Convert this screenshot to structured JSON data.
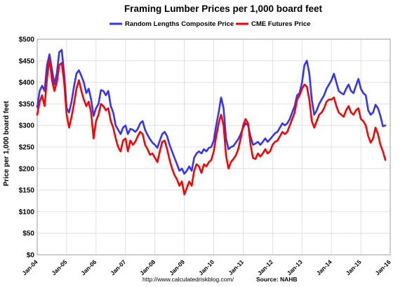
{
  "chart_data": {
    "type": "line",
    "title": "Framing Lumber Prices per 1,000 board feet",
    "ylabel": "Price per 1,000 board feet",
    "xlabel": "",
    "ylim": [
      0,
      500
    ],
    "xlim": [
      "2004-01",
      "2016-01"
    ],
    "grid": true,
    "legend_position": "top",
    "y_ticks": [
      "$0",
      "$50",
      "$100",
      "$150",
      "$200",
      "$250",
      "$300",
      "$350",
      "$400",
      "$450",
      "$500"
    ],
    "x_ticks": [
      "Jan-04",
      "Jan-05",
      "Jan-06",
      "Jan-07",
      "Jan-08",
      "Jan-09",
      "Jan-10",
      "Jan-11",
      "Jan-12",
      "Jan-13",
      "Jan-14",
      "Jan-15",
      "Jan-16"
    ],
    "series": [
      {
        "name": "Random Lengths Composite Price",
        "color": "#3333ff",
        "points": [
          [
            "2004-01",
            342
          ],
          [
            "2004-02",
            380
          ],
          [
            "2004-03",
            392
          ],
          [
            "2004-04",
            380
          ],
          [
            "2004-05",
            440
          ],
          [
            "2004-06",
            465
          ],
          [
            "2004-07",
            430
          ],
          [
            "2004-08",
            395
          ],
          [
            "2004-09",
            420
          ],
          [
            "2004-10",
            470
          ],
          [
            "2004-11",
            475
          ],
          [
            "2004-12",
            420
          ],
          [
            "2005-01",
            340
          ],
          [
            "2005-02",
            330
          ],
          [
            "2005-03",
            355
          ],
          [
            "2005-04",
            390
          ],
          [
            "2005-05",
            420
          ],
          [
            "2005-06",
            428
          ],
          [
            "2005-07",
            415
          ],
          [
            "2005-08",
            400
          ],
          [
            "2005-09",
            375
          ],
          [
            "2005-10",
            385
          ],
          [
            "2005-11",
            360
          ],
          [
            "2005-12",
            322
          ],
          [
            "2006-01",
            340
          ],
          [
            "2006-02",
            350
          ],
          [
            "2006-03",
            382
          ],
          [
            "2006-04",
            380
          ],
          [
            "2006-05",
            370
          ],
          [
            "2006-06",
            380
          ],
          [
            "2006-07",
            345
          ],
          [
            "2006-08",
            330
          ],
          [
            "2006-09",
            300
          ],
          [
            "2006-10",
            290
          ],
          [
            "2006-11",
            280
          ],
          [
            "2006-12",
            295
          ],
          [
            "2007-01",
            300
          ],
          [
            "2007-02",
            280
          ],
          [
            "2007-03",
            292
          ],
          [
            "2007-04",
            290
          ],
          [
            "2007-05",
            285
          ],
          [
            "2007-06",
            292
          ],
          [
            "2007-07",
            305
          ],
          [
            "2007-08",
            310
          ],
          [
            "2007-09",
            290
          ],
          [
            "2007-10",
            278
          ],
          [
            "2007-11",
            268
          ],
          [
            "2007-12",
            260
          ],
          [
            "2008-01",
            255
          ],
          [
            "2008-02",
            248
          ],
          [
            "2008-03",
            265
          ],
          [
            "2008-04",
            280
          ],
          [
            "2008-05",
            285
          ],
          [
            "2008-06",
            275
          ],
          [
            "2008-07",
            255
          ],
          [
            "2008-08",
            240
          ],
          [
            "2008-09",
            225
          ],
          [
            "2008-10",
            210
          ],
          [
            "2008-11",
            195
          ],
          [
            "2008-12",
            200
          ],
          [
            "2009-01",
            188
          ],
          [
            "2009-02",
            195
          ],
          [
            "2009-03",
            205
          ],
          [
            "2009-04",
            195
          ],
          [
            "2009-05",
            225
          ],
          [
            "2009-06",
            235
          ],
          [
            "2009-07",
            240
          ],
          [
            "2009-08",
            235
          ],
          [
            "2009-09",
            245
          ],
          [
            "2009-10",
            240
          ],
          [
            "2009-11",
            248
          ],
          [
            "2009-12",
            250
          ],
          [
            "2010-01",
            265
          ],
          [
            "2010-02",
            300
          ],
          [
            "2010-03",
            330
          ],
          [
            "2010-04",
            365
          ],
          [
            "2010-05",
            340
          ],
          [
            "2010-06",
            270
          ],
          [
            "2010-07",
            245
          ],
          [
            "2010-08",
            250
          ],
          [
            "2010-09",
            252
          ],
          [
            "2010-10",
            260
          ],
          [
            "2010-11",
            268
          ],
          [
            "2010-12",
            280
          ],
          [
            "2011-01",
            295
          ],
          [
            "2011-02",
            305
          ],
          [
            "2011-03",
            300
          ],
          [
            "2011-04",
            275
          ],
          [
            "2011-05",
            255
          ],
          [
            "2011-06",
            258
          ],
          [
            "2011-07",
            262
          ],
          [
            "2011-08",
            255
          ],
          [
            "2011-09",
            262
          ],
          [
            "2011-10",
            270
          ],
          [
            "2011-11",
            262
          ],
          [
            "2011-12",
            268
          ],
          [
            "2012-01",
            275
          ],
          [
            "2012-02",
            282
          ],
          [
            "2012-03",
            285
          ],
          [
            "2012-04",
            295
          ],
          [
            "2012-05",
            305
          ],
          [
            "2012-06",
            300
          ],
          [
            "2012-07",
            305
          ],
          [
            "2012-08",
            315
          ],
          [
            "2012-09",
            330
          ],
          [
            "2012-10",
            345
          ],
          [
            "2012-11",
            370
          ],
          [
            "2012-12",
            375
          ],
          [
            "2013-01",
            400
          ],
          [
            "2013-02",
            440
          ],
          [
            "2013-03",
            450
          ],
          [
            "2013-04",
            420
          ],
          [
            "2013-05",
            360
          ],
          [
            "2013-06",
            325
          ],
          [
            "2013-07",
            335
          ],
          [
            "2013-08",
            350
          ],
          [
            "2013-09",
            360
          ],
          [
            "2013-10",
            370
          ],
          [
            "2013-11",
            385
          ],
          [
            "2013-12",
            395
          ],
          [
            "2014-01",
            405
          ],
          [
            "2014-02",
            420
          ],
          [
            "2014-03",
            400
          ],
          [
            "2014-04",
            380
          ],
          [
            "2014-05",
            375
          ],
          [
            "2014-06",
            372
          ],
          [
            "2014-07",
            385
          ],
          [
            "2014-08",
            395
          ],
          [
            "2014-09",
            380
          ],
          [
            "2014-10",
            375
          ],
          [
            "2014-11",
            392
          ],
          [
            "2014-12",
            408
          ],
          [
            "2015-01",
            385
          ],
          [
            "2015-02",
            375
          ],
          [
            "2015-03",
            370
          ],
          [
            "2015-04",
            335
          ],
          [
            "2015-05",
            325
          ],
          [
            "2015-06",
            330
          ],
          [
            "2015-07",
            348
          ],
          [
            "2015-08",
            340
          ],
          [
            "2015-09",
            322
          ],
          [
            "2015-10",
            298
          ],
          [
            "2015-11",
            300
          ]
        ]
      },
      {
        "name": "CME Futures Price",
        "color": "#ff0000",
        "points": [
          [
            "2004-01",
            325
          ],
          [
            "2004-02",
            355
          ],
          [
            "2004-03",
            370
          ],
          [
            "2004-04",
            345
          ],
          [
            "2004-05",
            410
          ],
          [
            "2004-06",
            455
          ],
          [
            "2004-07",
            405
          ],
          [
            "2004-08",
            380
          ],
          [
            "2004-09",
            400
          ],
          [
            "2004-10",
            440
          ],
          [
            "2004-11",
            445
          ],
          [
            "2004-12",
            400
          ],
          [
            "2005-01",
            325
          ],
          [
            "2005-02",
            295
          ],
          [
            "2005-03",
            320
          ],
          [
            "2005-04",
            350
          ],
          [
            "2005-05",
            385
          ],
          [
            "2005-06",
            405
          ],
          [
            "2005-07",
            380
          ],
          [
            "2005-08",
            360
          ],
          [
            "2005-09",
            345
          ],
          [
            "2005-10",
            355
          ],
          [
            "2005-11",
            330
          ],
          [
            "2005-12",
            270
          ],
          [
            "2006-01",
            310
          ],
          [
            "2006-02",
            325
          ],
          [
            "2006-03",
            350
          ],
          [
            "2006-04",
            345
          ],
          [
            "2006-05",
            335
          ],
          [
            "2006-06",
            340
          ],
          [
            "2006-07",
            310
          ],
          [
            "2006-08",
            295
          ],
          [
            "2006-09",
            270
          ],
          [
            "2006-10",
            250
          ],
          [
            "2006-11",
            240
          ],
          [
            "2006-12",
            265
          ],
          [
            "2007-01",
            270
          ],
          [
            "2007-02",
            240
          ],
          [
            "2007-03",
            265
          ],
          [
            "2007-04",
            255
          ],
          [
            "2007-05",
            262
          ],
          [
            "2007-06",
            275
          ],
          [
            "2007-07",
            285
          ],
          [
            "2007-08",
            280
          ],
          [
            "2007-09",
            255
          ],
          [
            "2007-10",
            245
          ],
          [
            "2007-11",
            232
          ],
          [
            "2007-12",
            235
          ],
          [
            "2008-01",
            225
          ],
          [
            "2008-02",
            215
          ],
          [
            "2008-03",
            240
          ],
          [
            "2008-04",
            262
          ],
          [
            "2008-05",
            265
          ],
          [
            "2008-06",
            245
          ],
          [
            "2008-07",
            220
          ],
          [
            "2008-08",
            200
          ],
          [
            "2008-09",
            185
          ],
          [
            "2008-10",
            175
          ],
          [
            "2008-11",
            160
          ],
          [
            "2008-12",
            170
          ],
          [
            "2009-01",
            140
          ],
          [
            "2009-02",
            155
          ],
          [
            "2009-03",
            170
          ],
          [
            "2009-04",
            160
          ],
          [
            "2009-05",
            195
          ],
          [
            "2009-06",
            210
          ],
          [
            "2009-07",
            205
          ],
          [
            "2009-08",
            190
          ],
          [
            "2009-09",
            210
          ],
          [
            "2009-10",
            205
          ],
          [
            "2009-11",
            215
          ],
          [
            "2009-12",
            220
          ],
          [
            "2010-01",
            240
          ],
          [
            "2010-02",
            275
          ],
          [
            "2010-03",
            305
          ],
          [
            "2010-04",
            325
          ],
          [
            "2010-05",
            300
          ],
          [
            "2010-06",
            230
          ],
          [
            "2010-07",
            200
          ],
          [
            "2010-08",
            215
          ],
          [
            "2010-09",
            222
          ],
          [
            "2010-10",
            230
          ],
          [
            "2010-11",
            245
          ],
          [
            "2010-12",
            270
          ],
          [
            "2011-01",
            300
          ],
          [
            "2011-02",
            315
          ],
          [
            "2011-03",
            305
          ],
          [
            "2011-04",
            255
          ],
          [
            "2011-05",
            225
          ],
          [
            "2011-06",
            222
          ],
          [
            "2011-07",
            235
          ],
          [
            "2011-08",
            228
          ],
          [
            "2011-09",
            235
          ],
          [
            "2011-10",
            245
          ],
          [
            "2011-11",
            235
          ],
          [
            "2011-12",
            240
          ],
          [
            "2012-01",
            255
          ],
          [
            "2012-02",
            262
          ],
          [
            "2012-03",
            265
          ],
          [
            "2012-04",
            275
          ],
          [
            "2012-05",
            285
          ],
          [
            "2012-06",
            280
          ],
          [
            "2012-07",
            285
          ],
          [
            "2012-08",
            300
          ],
          [
            "2012-09",
            315
          ],
          [
            "2012-10",
            330
          ],
          [
            "2012-11",
            360
          ],
          [
            "2012-12",
            370
          ],
          [
            "2013-01",
            385
          ],
          [
            "2013-02",
            395
          ],
          [
            "2013-03",
            390
          ],
          [
            "2013-04",
            360
          ],
          [
            "2013-05",
            310
          ],
          [
            "2013-06",
            295
          ],
          [
            "2013-07",
            310
          ],
          [
            "2013-08",
            325
          ],
          [
            "2013-09",
            330
          ],
          [
            "2013-10",
            340
          ],
          [
            "2013-11",
            355
          ],
          [
            "2013-12",
            360
          ],
          [
            "2014-01",
            360
          ],
          [
            "2014-02",
            365
          ],
          [
            "2014-03",
            345
          ],
          [
            "2014-04",
            330
          ],
          [
            "2014-05",
            325
          ],
          [
            "2014-06",
            320
          ],
          [
            "2014-07",
            335
          ],
          [
            "2014-08",
            345
          ],
          [
            "2014-09",
            330
          ],
          [
            "2014-10",
            325
          ],
          [
            "2014-11",
            335
          ],
          [
            "2014-12",
            340
          ],
          [
            "2015-01",
            315
          ],
          [
            "2015-02",
            310
          ],
          [
            "2015-03",
            300
          ],
          [
            "2015-04",
            275
          ],
          [
            "2015-05",
            260
          ],
          [
            "2015-06",
            270
          ],
          [
            "2015-07",
            295
          ],
          [
            "2015-08",
            280
          ],
          [
            "2015-09",
            255
          ],
          [
            "2015-10",
            240
          ],
          [
            "2015-11",
            220
          ]
        ]
      }
    ]
  },
  "footer": {
    "url": "http://www.calculatedriskblog.com/",
    "source": "Source: NAHB"
  }
}
